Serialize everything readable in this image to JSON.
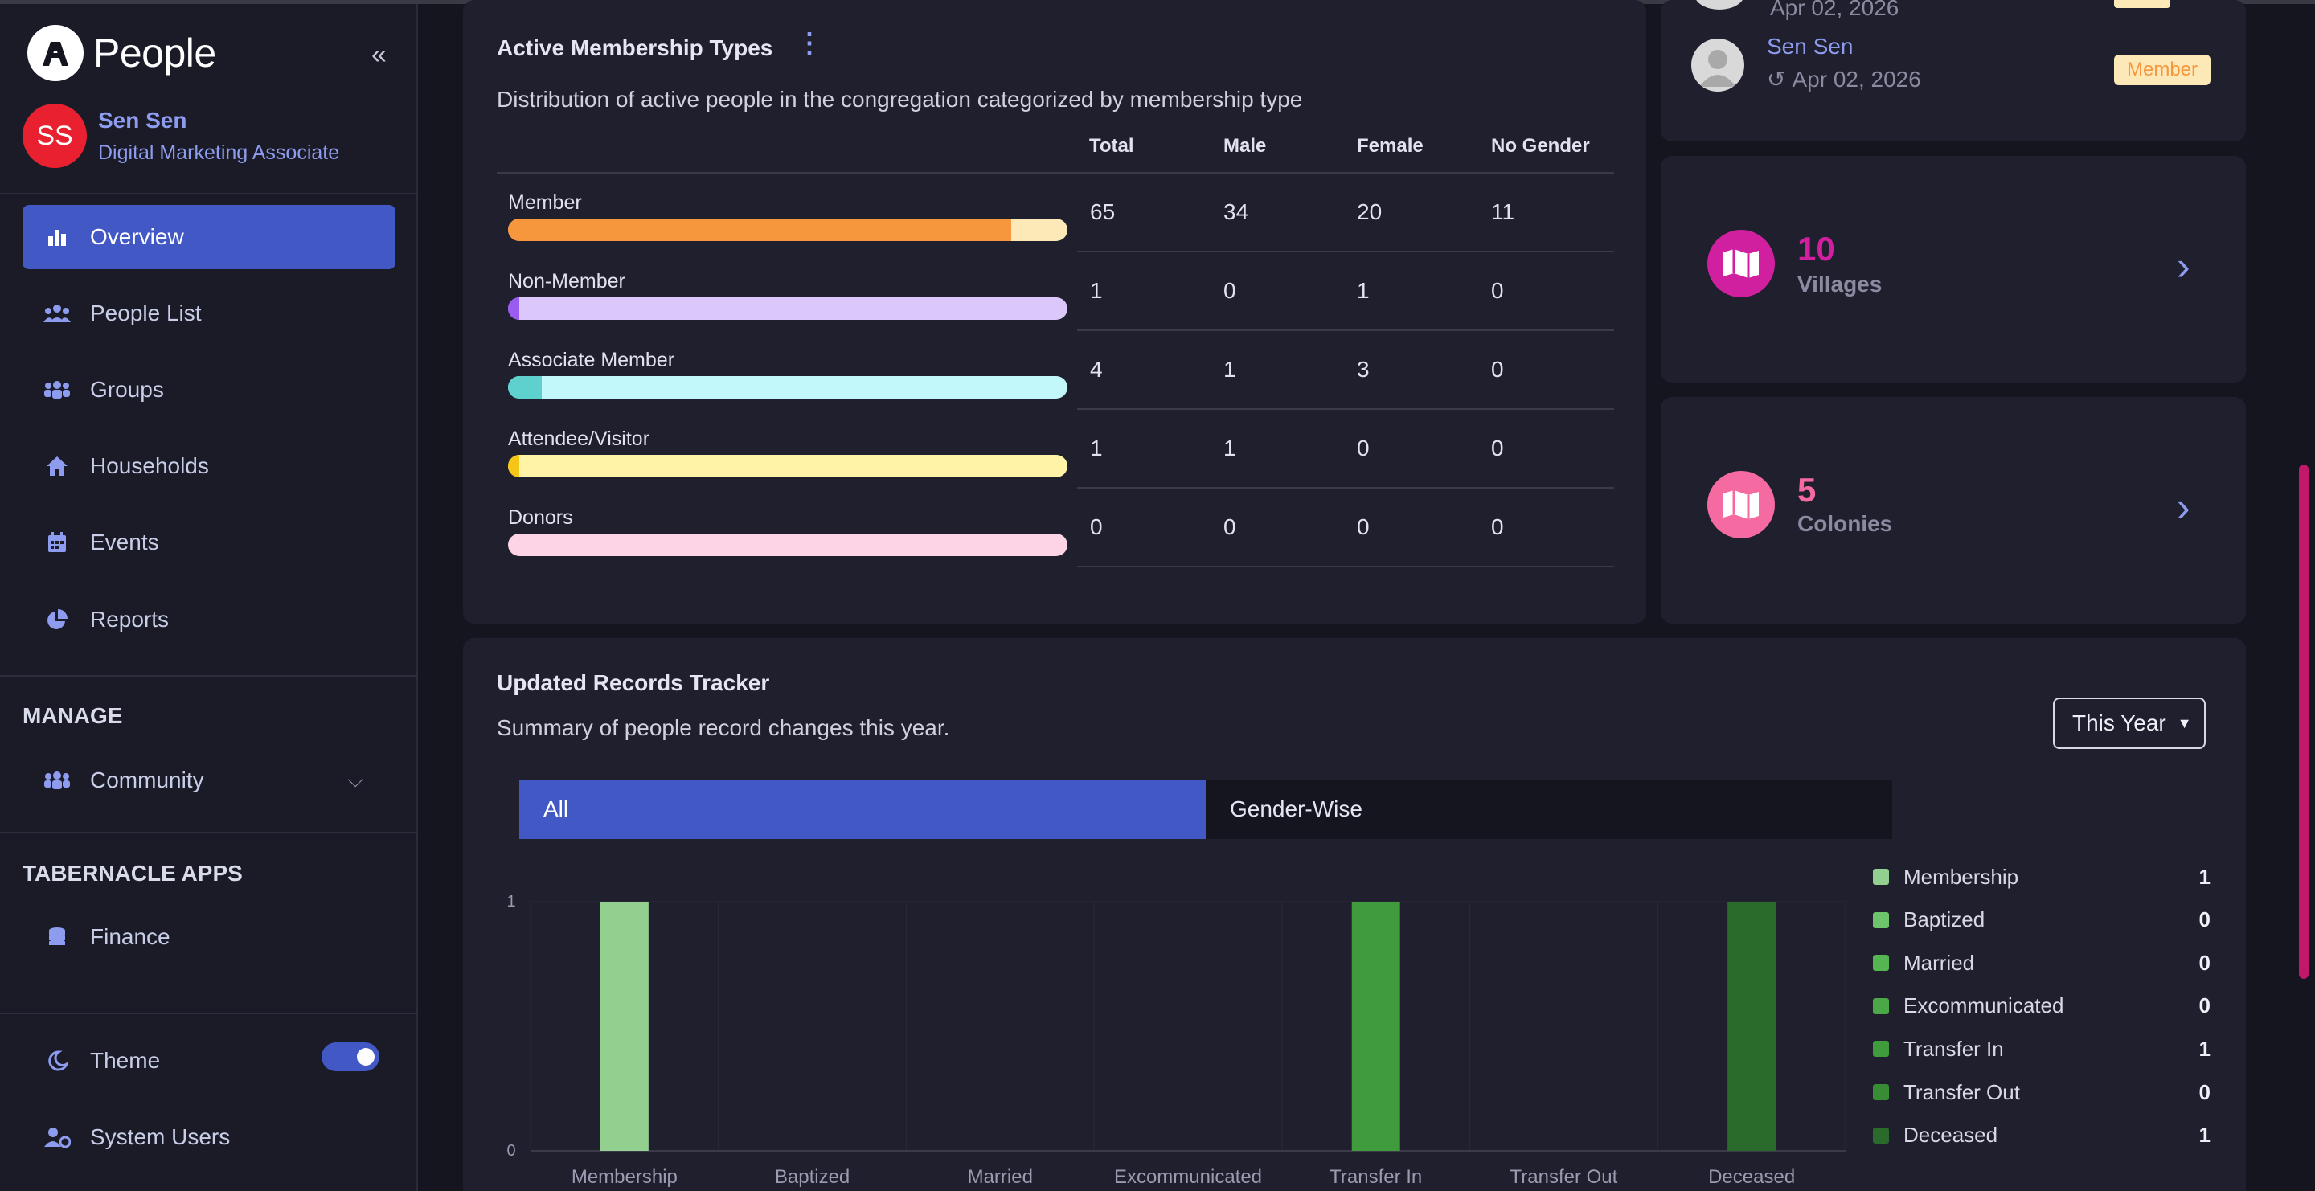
{
  "app": {
    "name": "People"
  },
  "user": {
    "initials": "SS",
    "name": "Sen Sen",
    "role": "Digital Marketing Associate"
  },
  "nav": {
    "items": [
      {
        "label": "Overview"
      },
      {
        "label": "People List"
      },
      {
        "label": "Groups"
      },
      {
        "label": "Households"
      },
      {
        "label": "Events"
      },
      {
        "label": "Reports"
      }
    ],
    "manage_label": "MANAGE",
    "community_label": "Community",
    "apps_label": "TABERNACLE APPS",
    "finance_label": "Finance",
    "theme_label": "Theme",
    "system_users_label": "System Users"
  },
  "membership": {
    "title": "Active Membership Types",
    "subtitle": "Distribution of active people in the congregation categorized by membership type",
    "headers": [
      "Total",
      "Male",
      "Female",
      "No Gender"
    ],
    "rows": [
      {
        "label": "Member",
        "total": "65",
        "male": "34",
        "female": "20",
        "no_gender": "11",
        "fill": 0.9,
        "color": "#f7973d",
        "track": "#fde9b8"
      },
      {
        "label": "Non-Member",
        "total": "1",
        "male": "0",
        "female": "1",
        "no_gender": "0",
        "fill": 0.02,
        "color": "#9a5cf0",
        "track": "#dcc7fb"
      },
      {
        "label": "Associate Member",
        "total": "4",
        "male": "1",
        "female": "3",
        "no_gender": "0",
        "fill": 0.06,
        "color": "#5ed1cf",
        "track": "#c2f8fa"
      },
      {
        "label": "Attendee/Visitor",
        "total": "1",
        "male": "1",
        "female": "0",
        "no_gender": "0",
        "fill": 0.015,
        "color": "#f5c518",
        "track": "#fff3a8"
      },
      {
        "label": "Donors",
        "total": "0",
        "male": "0",
        "female": "0",
        "no_gender": "0",
        "fill": 0,
        "color": "#f59ac2",
        "track": "#fdd3e6"
      }
    ]
  },
  "recent": {
    "top_date": "Apr 02, 2026",
    "name": "Sen Sen",
    "date": "Apr 02, 2026",
    "badge": "Member"
  },
  "stats": [
    {
      "value": "10",
      "label": "Villages",
      "color": "#d01f9f"
    },
    {
      "value": "5",
      "label": "Colonies",
      "color": "#f56aa0"
    }
  ],
  "tracker": {
    "title": "Updated Records Tracker",
    "subtitle": "Summary of people record changes this year.",
    "period": "This Year",
    "tabs": [
      "All",
      "Gender-Wise"
    ]
  },
  "chart_data": {
    "type": "bar",
    "categories": [
      "Membership",
      "Baptized",
      "Married",
      "Excommunicated",
      "Transfer In",
      "Transfer Out",
      "Deceased"
    ],
    "values": [
      1,
      0,
      0,
      0,
      1,
      0,
      1
    ],
    "colors": [
      "#93d08f",
      "#6ec46a",
      "#55b551",
      "#4aa846",
      "#3f9b3c",
      "#378c35",
      "#2a6a2a"
    ],
    "ylim": [
      0,
      1
    ],
    "yticks": [
      "0",
      "1"
    ],
    "grid": true,
    "legend": "right"
  }
}
